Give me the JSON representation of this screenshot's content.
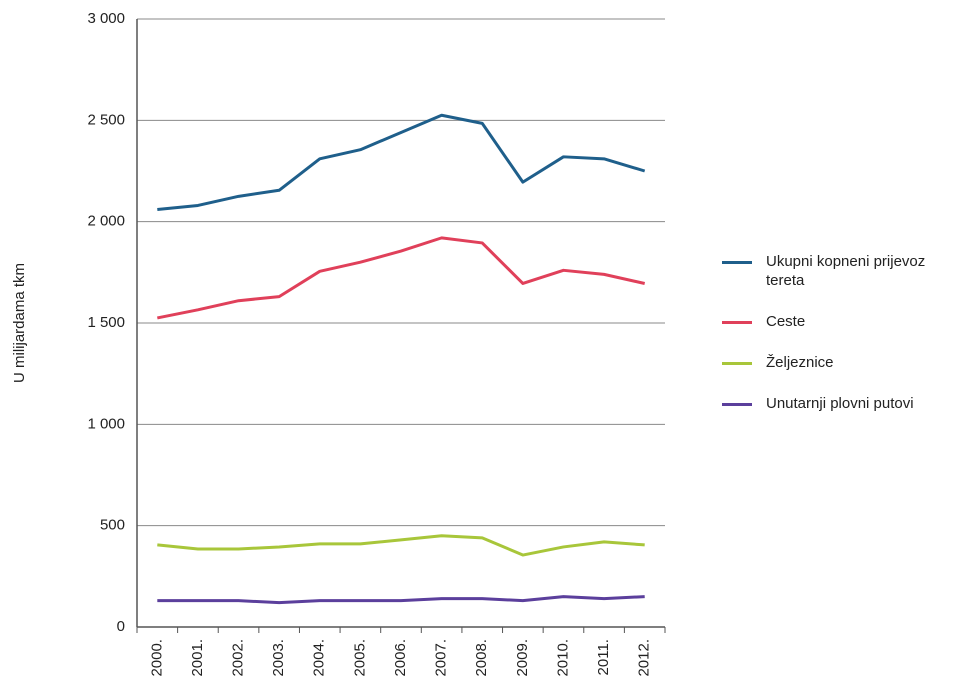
{
  "chart_data": {
    "type": "line",
    "y_label": "U milijardama tkm",
    "categories": [
      "2000.",
      "2001.",
      "2002.",
      "2003.",
      "2004.",
      "2005.",
      "2006.",
      "2007.",
      "2008.",
      "2009.",
      "2010.",
      "2011.",
      "2012."
    ],
    "series": [
      {
        "name": "Ukupni kopneni prijevoz tereta",
        "color": "#1f5f8b",
        "values": [
          2060,
          2080,
          2125,
          2155,
          2310,
          2355,
          2440,
          2525,
          2485,
          2195,
          2320,
          2310,
          2250
        ]
      },
      {
        "name": "Ceste",
        "color": "#e0405a",
        "values": [
          1525,
          1565,
          1610,
          1630,
          1755,
          1800,
          1855,
          1920,
          1895,
          1695,
          1760,
          1740,
          1695
        ]
      },
      {
        "name": "Željeznice",
        "color": "#a8c63a",
        "values": [
          405,
          385,
          385,
          395,
          410,
          410,
          430,
          450,
          440,
          355,
          395,
          420,
          405
        ]
      },
      {
        "name": "Unutarnji plovni putovi",
        "color": "#5b3f9c",
        "values": [
          130,
          130,
          130,
          120,
          130,
          130,
          130,
          140,
          140,
          130,
          150,
          140,
          150
        ]
      }
    ],
    "ylim": [
      0,
      3000
    ],
    "yticks": [
      0,
      500,
      {
        "value": 1000,
        "label": "1 000"
      },
      {
        "value": 1500,
        "label": "1 500"
      },
      {
        "value": 2000,
        "label": "2 000"
      },
      {
        "value": 2500,
        "label": "2 500"
      },
      {
        "value": 3000,
        "label": "3 000"
      }
    ],
    "grid": true
  }
}
